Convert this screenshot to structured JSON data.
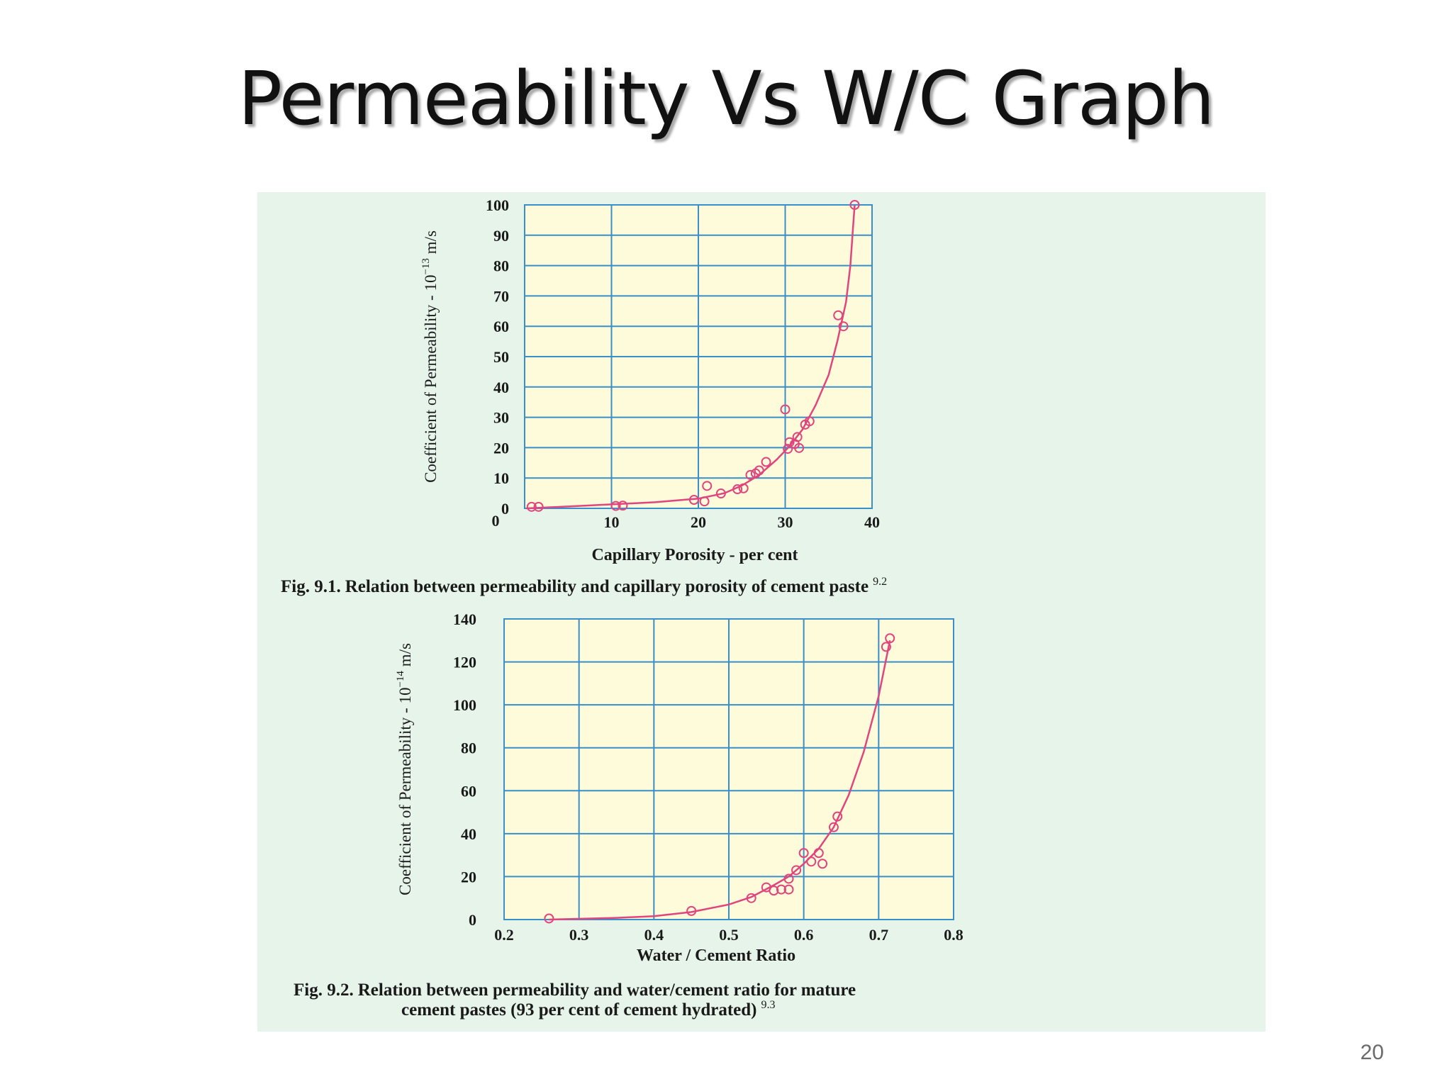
{
  "slide": {
    "title": "Permeability Vs W/C Graph",
    "page_number": "20"
  },
  "colors": {
    "panel_background": "#e6f4e9",
    "plot_background": "#fdfbd9",
    "grid": "#3a8fc8",
    "curve": "#e0457f",
    "text": "#1a1a1a"
  },
  "chart_data": [
    {
      "type": "scatter",
      "caption_label": "Fig. 9.1.",
      "caption_text": "Relation between permeability and capillary porosity of cement paste",
      "caption_ref": "9.2",
      "xlabel": "Capillary Porosity - per cent",
      "ylabel_main": "Coefficient of Permeability - 10",
      "ylabel_exp": "−13",
      "ylabel_unit": " m/s",
      "xlim": [
        0,
        40
      ],
      "ylim": [
        0,
        100
      ],
      "xticks": [
        10,
        20,
        30,
        40
      ],
      "yticks": [
        0,
        10,
        20,
        30,
        40,
        50,
        60,
        70,
        80,
        90,
        100
      ],
      "grid": true,
      "x_zero_label": "0",
      "points": [
        [
          0.8,
          0.5
        ],
        [
          1.6,
          0.5
        ],
        [
          10.5,
          0.8
        ],
        [
          11.3,
          0.9
        ],
        [
          19.5,
          2.8
        ],
        [
          21.0,
          7.4
        ],
        [
          20.7,
          2.3
        ],
        [
          22.6,
          4.9
        ],
        [
          24.5,
          6.3
        ],
        [
          25.2,
          6.6
        ],
        [
          26.0,
          11.0
        ],
        [
          26.6,
          11.5
        ],
        [
          27.0,
          12.5
        ],
        [
          27.8,
          15.3
        ],
        [
          30.0,
          32.6
        ],
        [
          30.3,
          19.6
        ],
        [
          30.5,
          21.8
        ],
        [
          31.1,
          21.2
        ],
        [
          31.4,
          23.5
        ],
        [
          31.6,
          19.9
        ],
        [
          32.3,
          27.6
        ],
        [
          32.8,
          28.7
        ],
        [
          36.1,
          63.6
        ],
        [
          36.7,
          60.0
        ],
        [
          38.0,
          100.0
        ]
      ],
      "curve": [
        [
          0.2,
          0.0
        ],
        [
          5,
          0.6
        ],
        [
          10,
          1.3
        ],
        [
          15,
          2.0
        ],
        [
          20,
          3.2
        ],
        [
          23,
          5.0
        ],
        [
          25,
          7.5
        ],
        [
          27,
          11.0
        ],
        [
          29,
          16.0
        ],
        [
          30.5,
          20.5
        ],
        [
          32,
          26.0
        ],
        [
          33.5,
          34.0
        ],
        [
          35,
          44.0
        ],
        [
          36,
          55.0
        ],
        [
          37,
          68.0
        ],
        [
          37.5,
          80.0
        ],
        [
          37.8,
          92.0
        ],
        [
          38.0,
          100.0
        ]
      ]
    },
    {
      "type": "scatter",
      "caption_label": "Fig. 9.2.",
      "caption_line1": "Relation between permeability and water/cement ratio for mature",
      "caption_line2": "cement pastes (93 per cent of cement hydrated)",
      "caption_ref": "9.3",
      "xlabel": "Water / Cement Ratio",
      "ylabel_main": "Coefficient of Permeability - 10",
      "ylabel_exp": "−14",
      "ylabel_unit": " m/s",
      "xlim": [
        0.2,
        0.8
      ],
      "ylim": [
        0,
        140
      ],
      "xticks": [
        0.2,
        0.3,
        0.4,
        0.5,
        0.6,
        0.7,
        0.8
      ],
      "yticks": [
        0,
        20,
        40,
        60,
        80,
        100,
        120,
        140
      ],
      "grid": true,
      "points": [
        [
          0.26,
          0.5
        ],
        [
          0.45,
          4.0
        ],
        [
          0.53,
          10.0
        ],
        [
          0.55,
          15.0
        ],
        [
          0.56,
          13.5
        ],
        [
          0.57,
          14.0
        ],
        [
          0.58,
          14.0
        ],
        [
          0.58,
          19.0
        ],
        [
          0.59,
          23.0
        ],
        [
          0.6,
          31.0
        ],
        [
          0.61,
          27.0
        ],
        [
          0.62,
          31.0
        ],
        [
          0.625,
          26.0
        ],
        [
          0.64,
          43.0
        ],
        [
          0.645,
          48.0
        ],
        [
          0.71,
          127.0
        ],
        [
          0.715,
          131.0
        ]
      ],
      "curve": [
        [
          0.26,
          0.0
        ],
        [
          0.35,
          0.8
        ],
        [
          0.4,
          1.6
        ],
        [
          0.45,
          3.5
        ],
        [
          0.5,
          7.0
        ],
        [
          0.53,
          10.5
        ],
        [
          0.56,
          16.0
        ],
        [
          0.58,
          20.0
        ],
        [
          0.6,
          26.0
        ],
        [
          0.62,
          33.0
        ],
        [
          0.64,
          43.0
        ],
        [
          0.66,
          58.0
        ],
        [
          0.68,
          78.0
        ],
        [
          0.7,
          104.0
        ],
        [
          0.715,
          130.0
        ]
      ]
    }
  ]
}
